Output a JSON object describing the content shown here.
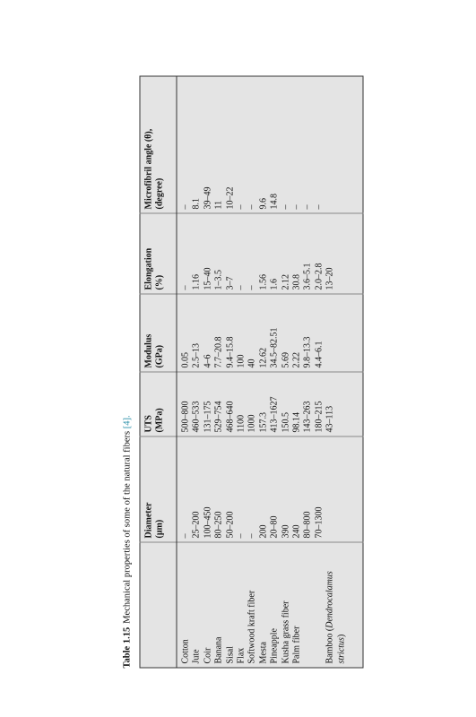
{
  "caption": {
    "label": "Table 1.15",
    "text": "Mechanical properties of some of the natural fibers",
    "ref": "[4]."
  },
  "table": {
    "headers": [
      null,
      [
        "Diameter",
        "(μm)"
      ],
      [
        "UTS",
        "(MPa)"
      ],
      [
        "Modulus",
        "(GPa)"
      ],
      [
        "Elongation",
        "(%)"
      ],
      [
        "Microfibril angle (θ),",
        "(degree)"
      ]
    ],
    "rows": [
      [
        "Cotton",
        "–",
        "500–800",
        "0.05",
        "–",
        "–"
      ],
      [
        "Jute",
        "25–200",
        "460–533",
        "2.5–13",
        "1.16",
        "8.1"
      ],
      [
        "Coir",
        "100–450",
        "131–175",
        "4–6",
        "15–40",
        "39–49"
      ],
      [
        "Banana",
        "80–250",
        "529–754",
        "7.7–20.8",
        "1–3.5",
        "11"
      ],
      [
        "Sisal",
        "50–200",
        "468–640",
        "9.4–15.8",
        "3–7",
        "10–22"
      ],
      [
        "Flax",
        "–",
        "1100",
        "100",
        "–",
        "–"
      ],
      [
        "Softwood kraft fiber",
        "–",
        "1000",
        "40",
        "–",
        "–"
      ],
      [
        "Mesta",
        "200",
        "157.3",
        "12.62",
        "1.56",
        "9.6"
      ],
      [
        "Pineapple",
        "20–80",
        "413–1627",
        "34.5–82.51",
        "1.6",
        "14.8"
      ],
      [
        "Kusha grass fiber",
        "390",
        "150.5",
        "5.69",
        "2.12",
        "–"
      ],
      [
        "Palm fiber",
        "240",
        "98.14",
        "2.22",
        "30.8",
        "–"
      ],
      [
        null,
        "80–800",
        "143–263",
        "9.8–13.3",
        "3.6–5.1",
        "–"
      ],
      [
        null,
        "70–1300",
        "180–215",
        "4.4–6.1",
        "2.0–2.8",
        "–"
      ],
      [
        [
          "Bamboo (",
          "Dendrocalamus",
          " strictus",
          ")"
        ],
        null,
        "43–113",
        null,
        "13–20",
        null
      ]
    ]
  }
}
